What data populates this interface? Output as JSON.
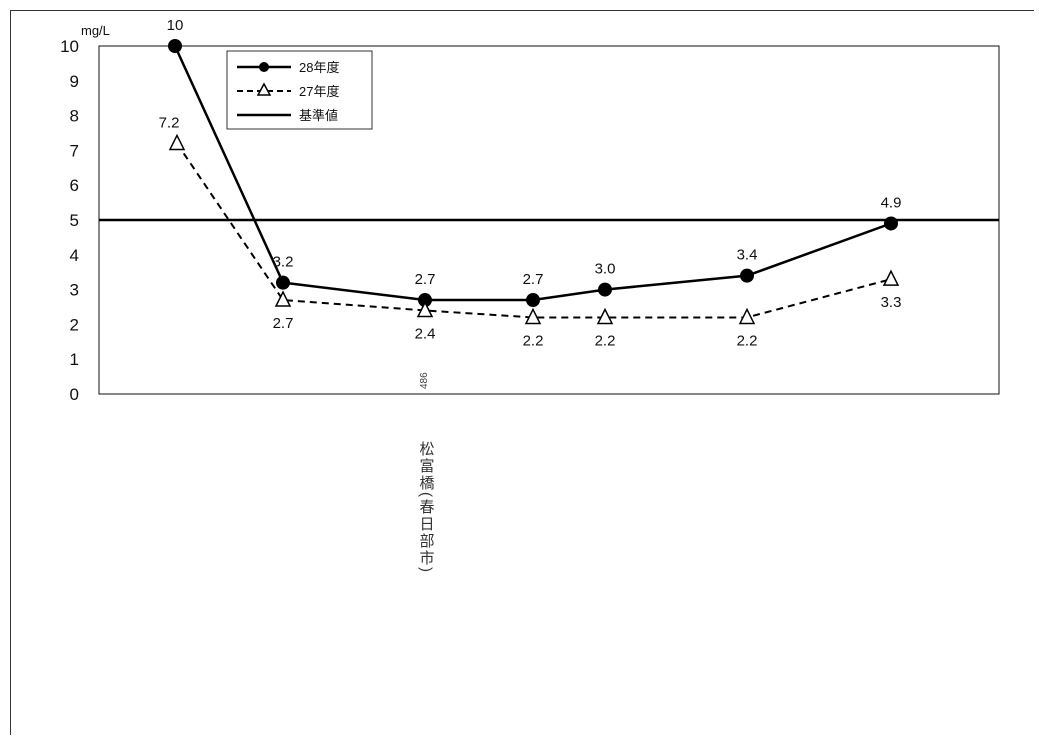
{
  "chart_data": {
    "type": "line",
    "unit_label": "mg/L",
    "ylim": [
      0,
      10
    ],
    "yticks": [
      "0",
      "1",
      "2",
      "3",
      "4",
      "5",
      "6",
      "7",
      "8",
      "9",
      "10"
    ],
    "categories": [
      "",
      "",
      "",
      "",
      "",
      "",
      ""
    ],
    "series": [
      {
        "name": "28年度",
        "style": "solid-circle",
        "color": "#000000",
        "values": [
          10,
          3.2,
          2.7,
          2.7,
          3.0,
          3.4,
          4.9
        ],
        "labels": [
          "10",
          "3.2",
          "2.7",
          "2.7",
          "3.0",
          "3.4",
          "4.9"
        ]
      },
      {
        "name": "27年度",
        "style": "dashed-triangle",
        "color": "#000000",
        "values": [
          7.2,
          2.7,
          2.4,
          2.2,
          2.2,
          2.2,
          3.3
        ],
        "labels": [
          "7.2",
          "2.7",
          "2.4",
          "2.2",
          "2.2",
          "2.2",
          "3.3"
        ]
      }
    ],
    "reference": {
      "name": "基準値",
      "value": 5
    },
    "legend": {
      "position": "top-left-inside"
    },
    "x_annotation": {
      "small_text": "486",
      "vertical_text": "松富橋(春日部市)"
    },
    "grid": false
  }
}
